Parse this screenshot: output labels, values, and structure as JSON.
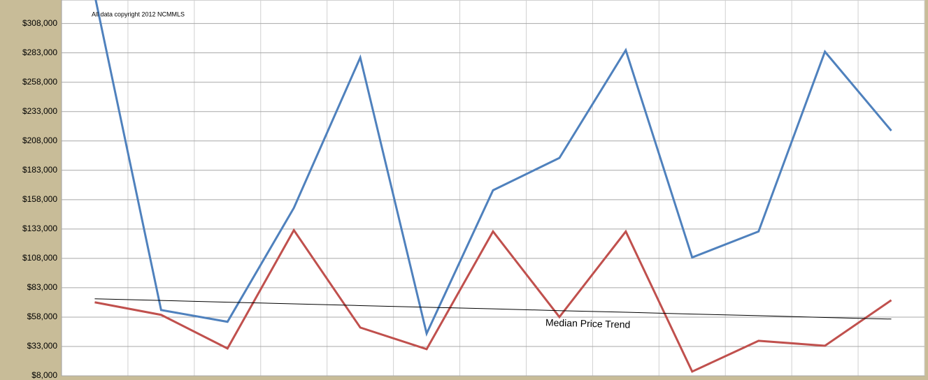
{
  "chart_data": {
    "type": "line",
    "annotation": "All data copyright 2012  NCMMLS",
    "categories": [
      null,
      null,
      null,
      null,
      null,
      null,
      null,
      null,
      null,
      null,
      null,
      null,
      null
    ],
    "series": [
      {
        "name": null,
        "color": "#4f81bd",
        "values": [
          332000,
          64000,
          54000,
          151000,
          279000,
          44000,
          166000,
          193500,
          285300,
          108800,
          130900,
          284000,
          216700
        ]
      },
      {
        "name": null,
        "color": "#c0504d",
        "values": [
          70600,
          59900,
          31300,
          132000,
          49100,
          30700,
          130900,
          58100,
          130900,
          11600,
          37800,
          33600,
          72400
        ]
      },
      {
        "name": "Median Price Trend",
        "color": "#000000",
        "values": [
          73600,
          72200,
          70700,
          69300,
          67800,
          66400,
          65000,
          63500,
          62100,
          60600,
          59200,
          57700,
          56300
        ]
      }
    ],
    "ylim": [
      8000,
      328000
    ],
    "yticks": [
      {
        "value": 8000,
        "label": "$8,000"
      },
      {
        "value": 33000,
        "label": "$33,000"
      },
      {
        "value": 58000,
        "label": "$58,000"
      },
      {
        "value": 83000,
        "label": "$83,000"
      },
      {
        "value": 108000,
        "label": "$108,000"
      },
      {
        "value": 133000,
        "label": "$133,000"
      },
      {
        "value": 158000,
        "label": "$158,000"
      },
      {
        "value": 183000,
        "label": "$183,000"
      },
      {
        "value": 208000,
        "label": "$208,000"
      },
      {
        "value": 233000,
        "label": "$233,000"
      },
      {
        "value": 258000,
        "label": "$258,000"
      },
      {
        "value": 283000,
        "label": "$283,000"
      },
      {
        "value": 308000,
        "label": "$308,000"
      }
    ],
    "grid": true
  }
}
